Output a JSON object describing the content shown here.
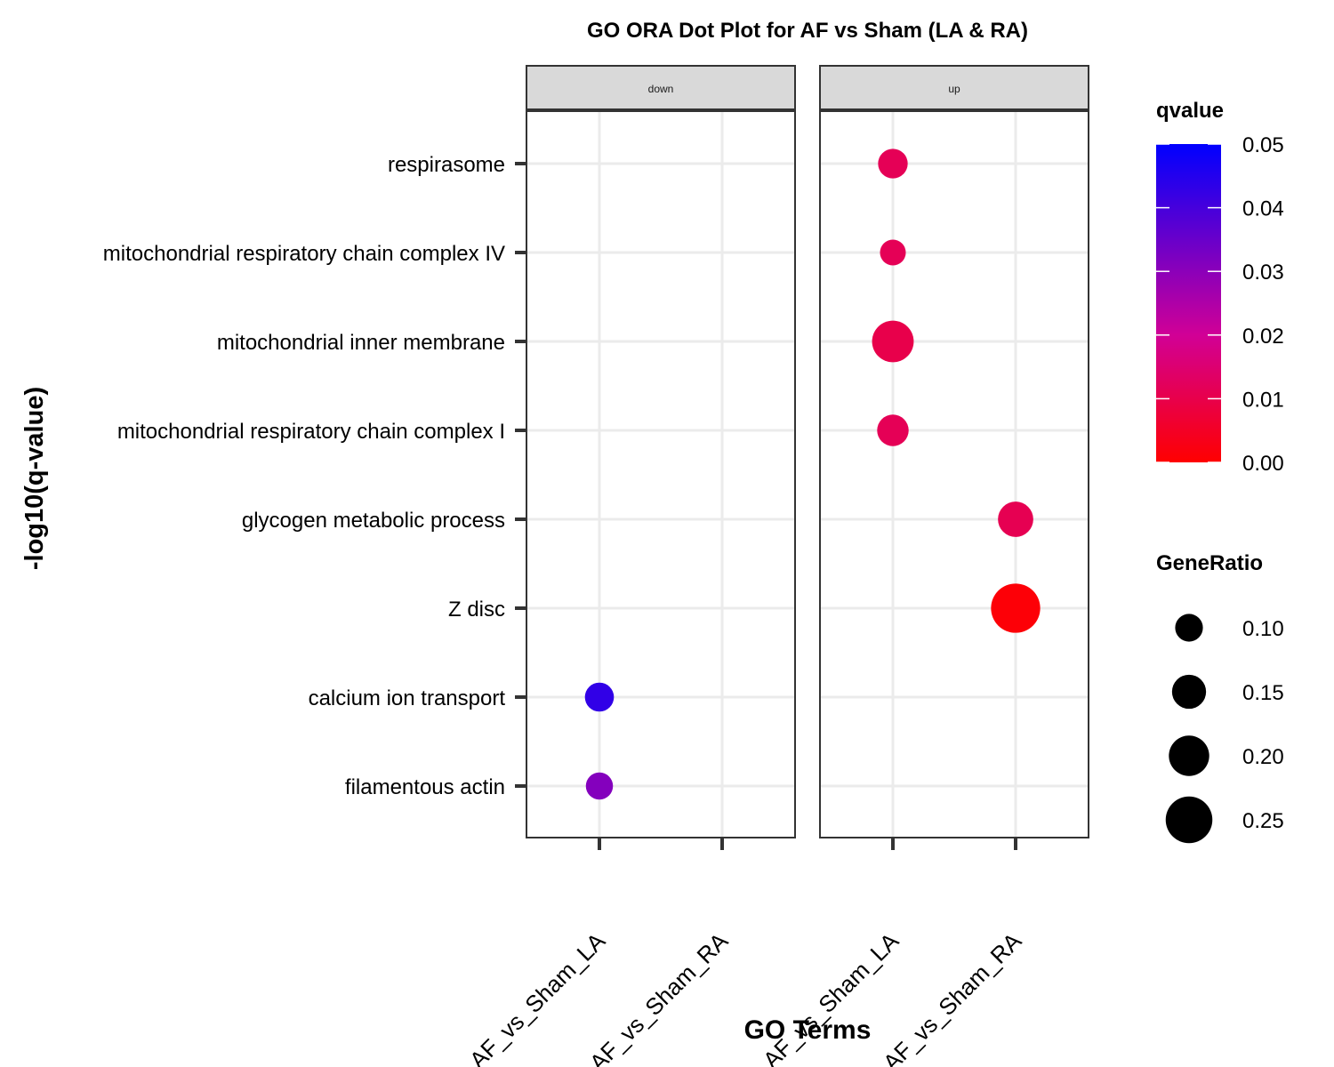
{
  "chart_data": {
    "type": "scatter",
    "title": "GO ORA Dot Plot for AF vs Sham (LA & RA)",
    "xlabel": "GO Terms",
    "ylabel": "-log10(q-value)",
    "facets": [
      "down",
      "up"
    ],
    "x_categories": [
      "AF_vs_Sham_LA",
      "AF_vs_Sham_RA"
    ],
    "y_categories": [
      "respirasome",
      "mitochondrial respiratory chain complex IV",
      "mitochondrial inner membrane",
      "mitochondrial respiratory chain complex I",
      "glycogen metabolic process",
      "Z disc",
      "calcium ion transport",
      "filamentous actin"
    ],
    "points": [
      {
        "facet": "up",
        "x": "AF_vs_Sham_LA",
        "term": "respirasome",
        "gene_ratio": 0.115,
        "qvalue": 0.0115
      },
      {
        "facet": "up",
        "x": "AF_vs_Sham_LA",
        "term": "mitochondrial respiratory chain complex IV",
        "gene_ratio": 0.085,
        "qvalue": 0.0115
      },
      {
        "facet": "up",
        "x": "AF_vs_Sham_LA",
        "term": "mitochondrial inner membrane",
        "gene_ratio": 0.21,
        "qvalue": 0.01
      },
      {
        "facet": "up",
        "x": "AF_vs_Sham_LA",
        "term": "mitochondrial respiratory chain complex I",
        "gene_ratio": 0.13,
        "qvalue": 0.0115
      },
      {
        "facet": "up",
        "x": "AF_vs_Sham_RA",
        "term": "glycogen metabolic process",
        "gene_ratio": 0.16,
        "qvalue": 0.011
      },
      {
        "facet": "up",
        "x": "AF_vs_Sham_RA",
        "term": "Z disc",
        "gene_ratio": 0.27,
        "qvalue": 0.001
      },
      {
        "facet": "down",
        "x": "AF_vs_Sham_LA",
        "term": "calcium ion transport",
        "gene_ratio": 0.11,
        "qvalue": 0.043
      },
      {
        "facet": "down",
        "x": "AF_vs_Sham_LA",
        "term": "filamentous actin",
        "gene_ratio": 0.095,
        "qvalue": 0.031
      }
    ],
    "color_legend": {
      "title": "qvalue",
      "range": [
        0,
        0.05
      ],
      "ticks": [
        "0.05",
        "0.04",
        "0.03",
        "0.02",
        "0.01",
        "0.00"
      ],
      "low_color": "#ff0000",
      "high_color": "#0000ff"
    },
    "size_legend": {
      "title": "GeneRatio",
      "values": [
        0.1,
        0.15,
        0.2,
        0.25
      ],
      "labels": [
        "0.10",
        "0.15",
        "0.20",
        "0.25"
      ]
    },
    "grid": true,
    "legend_position": "right"
  }
}
